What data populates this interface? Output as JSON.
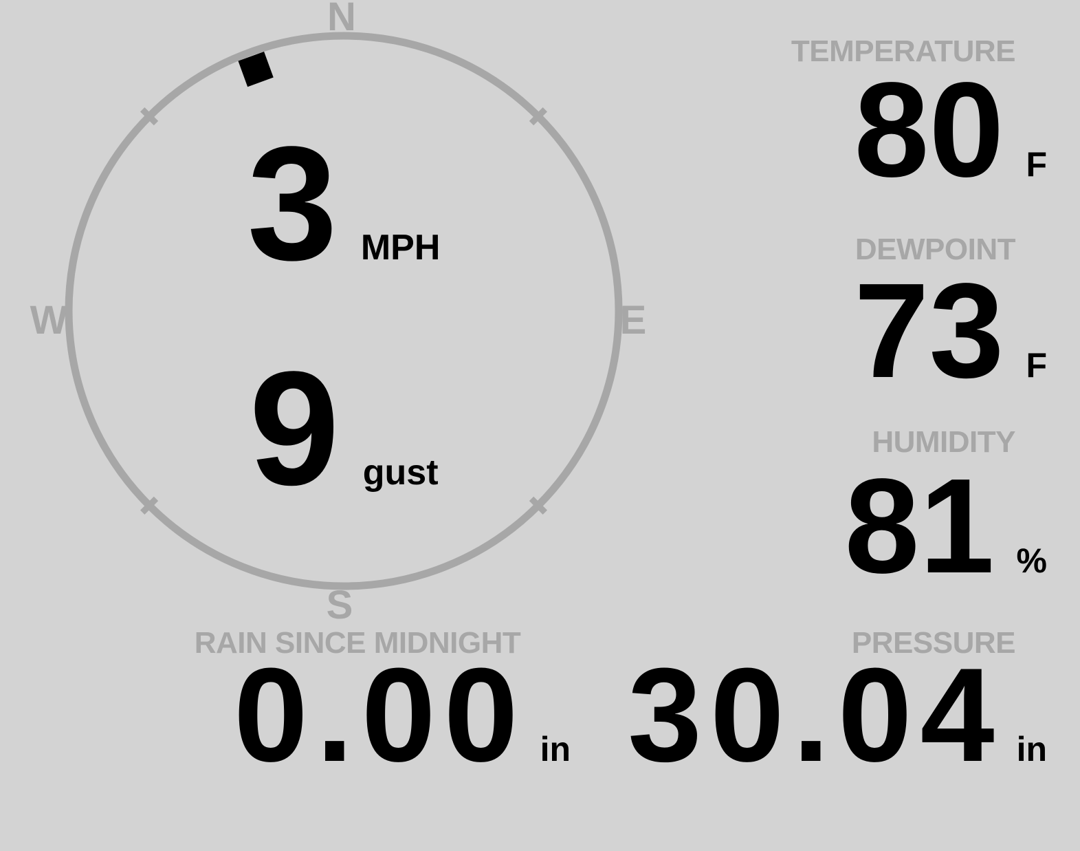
{
  "colors": {
    "background": "#d3d3d3",
    "muted_gray": "#a7a7a7",
    "value_black": "#000000"
  },
  "wind": {
    "compass": {
      "north": "N",
      "east": "E",
      "south": "S",
      "west": "W"
    },
    "direction_degrees": 340,
    "speed_value": "3",
    "speed_unit": "MPH",
    "gust_value": "9",
    "gust_unit": "gust"
  },
  "metrics": {
    "temperature": {
      "label": "TEMPERATURE",
      "value": "80",
      "unit": "F"
    },
    "dewpoint": {
      "label": "DEWPOINT",
      "value": "73",
      "unit": "F"
    },
    "humidity": {
      "label": "HUMIDITY",
      "value": "81",
      "unit": "%"
    },
    "rain": {
      "label": "RAIN SINCE MIDNIGHT",
      "value": "0.00",
      "unit": "in"
    },
    "pressure": {
      "label": "PRESSURE",
      "value": "30.04",
      "unit": "in"
    }
  }
}
